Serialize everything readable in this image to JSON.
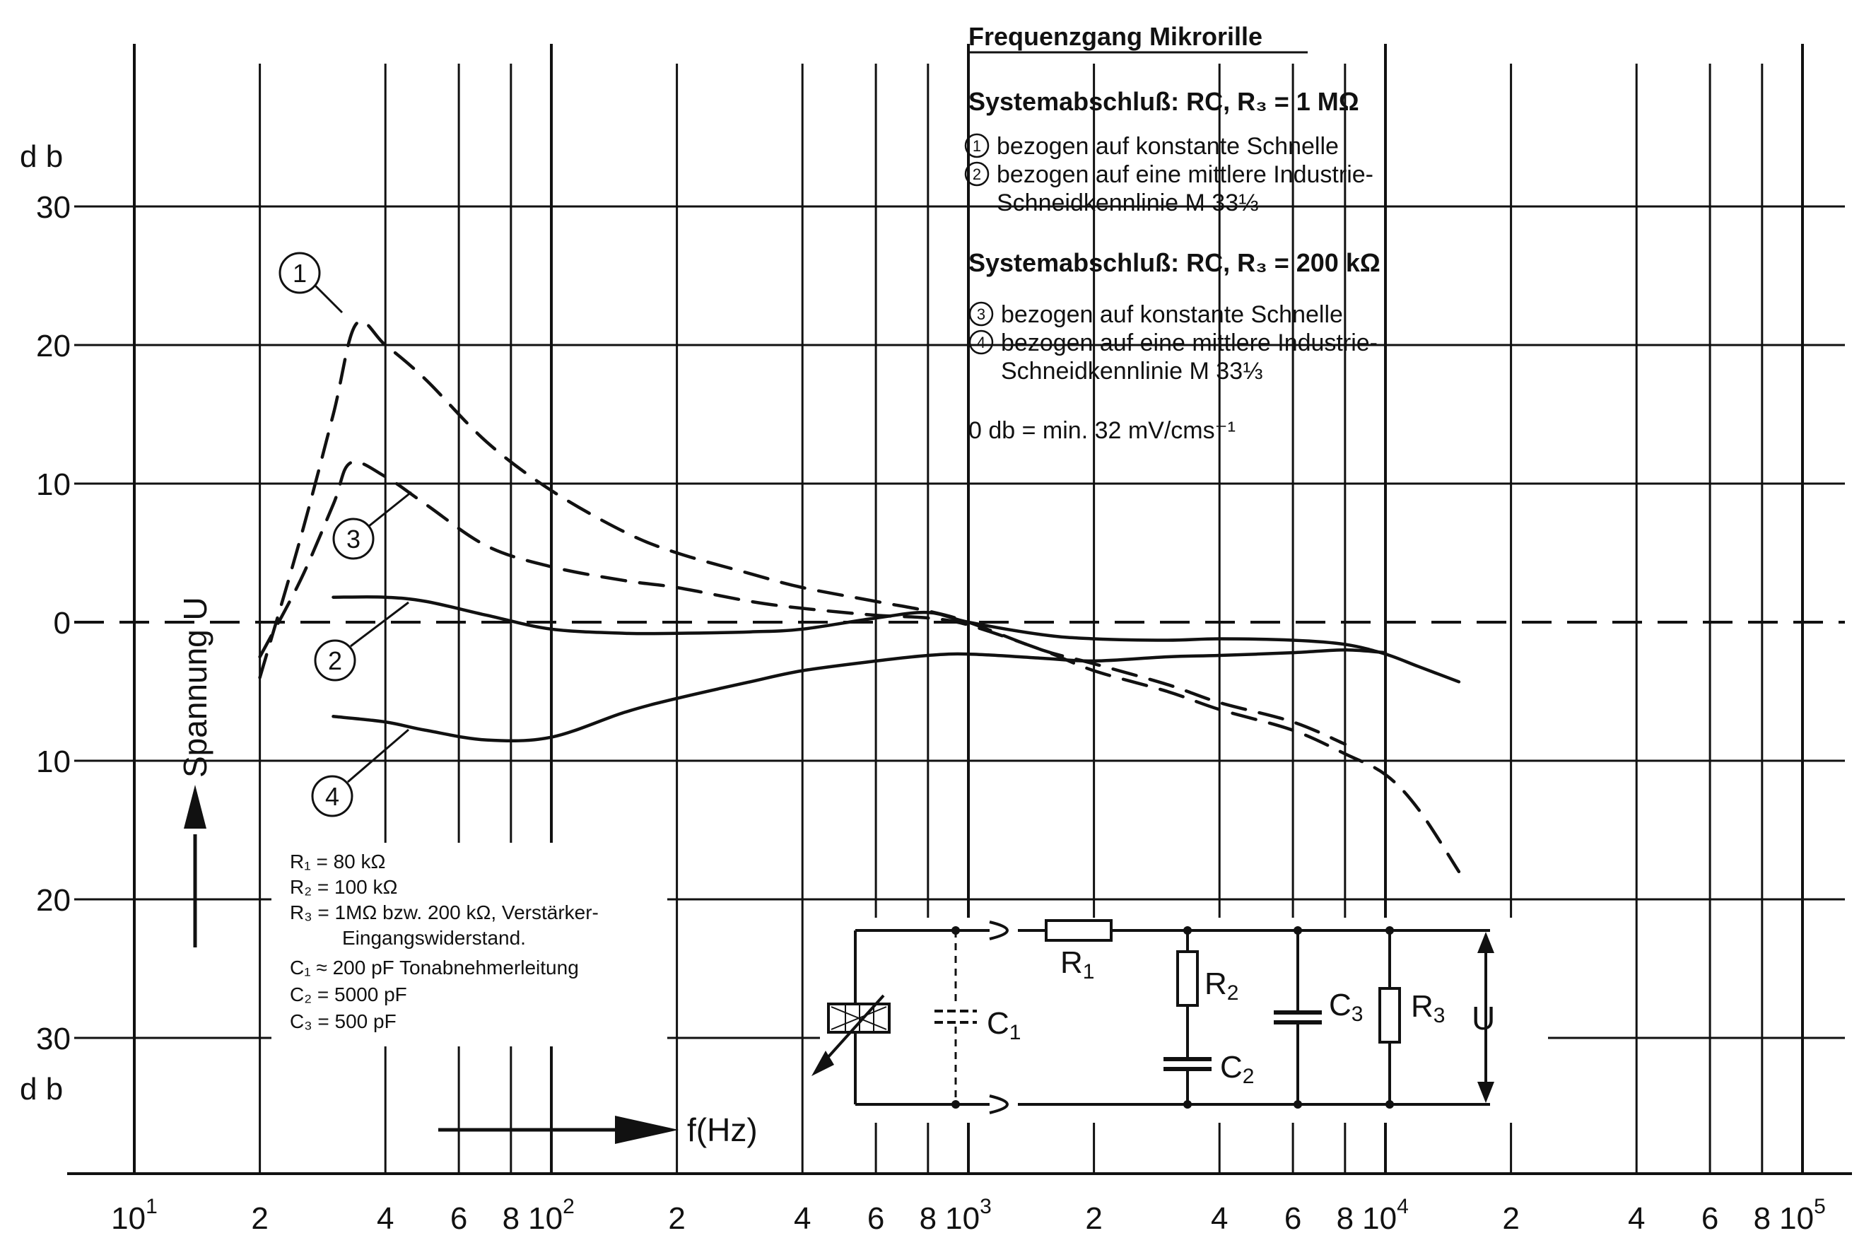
{
  "chart_data": {
    "type": "line",
    "title": "Frequenzgang Mikrorille",
    "xlabel": "f(Hz)",
    "ylabel": "Spannung U",
    "y_unit_top": "d b",
    "y_unit_bottom": "d b",
    "x_scale": "log",
    "xlim": [
      10,
      100000
    ],
    "ylim": [
      -40,
      40
    ],
    "y_ticks": [
      {
        "value": 30,
        "label": "30"
      },
      {
        "value": 20,
        "label": "20"
      },
      {
        "value": 10,
        "label": "10"
      },
      {
        "value": 0,
        "label": "0"
      },
      {
        "value": -10,
        "label": "10"
      },
      {
        "value": -20,
        "label": "20"
      },
      {
        "value": -30,
        "label": "30"
      }
    ],
    "x_ticks": [
      {
        "value": 10,
        "label": "10",
        "exp": "1"
      },
      {
        "value": 20,
        "label": "2"
      },
      {
        "value": 40,
        "label": "4"
      },
      {
        "value": 60,
        "label": "6"
      },
      {
        "value": 80,
        "label": "8"
      },
      {
        "value": 100,
        "label": "10",
        "exp": "2"
      },
      {
        "value": 200,
        "label": "2"
      },
      {
        "value": 400,
        "label": "4"
      },
      {
        "value": 600,
        "label": "6"
      },
      {
        "value": 800,
        "label": "8"
      },
      {
        "value": 1000,
        "label": "10",
        "exp": "3"
      },
      {
        "value": 2000,
        "label": "2"
      },
      {
        "value": 4000,
        "label": "4"
      },
      {
        "value": 6000,
        "label": "6"
      },
      {
        "value": 8000,
        "label": "8"
      },
      {
        "value": 10000,
        "label": "10",
        "exp": "4"
      },
      {
        "value": 20000,
        "label": "2"
      },
      {
        "value": 40000,
        "label": "4"
      },
      {
        "value": 60000,
        "label": "6"
      },
      {
        "value": 80000,
        "label": "8"
      },
      {
        "value": 100000,
        "label": "10",
        "exp": "5"
      }
    ],
    "grid": true,
    "zero_line": "dashed",
    "series": [
      {
        "name": "1",
        "style": "dashed",
        "points": [
          [
            20,
            -4
          ],
          [
            25,
            6
          ],
          [
            30,
            15
          ],
          [
            34,
            21.5
          ],
          [
            40,
            20
          ],
          [
            50,
            17.5
          ],
          [
            70,
            13
          ],
          [
            100,
            9.5
          ],
          [
            150,
            6.5
          ],
          [
            200,
            5
          ],
          [
            300,
            3.5
          ],
          [
            400,
            2.5
          ],
          [
            600,
            1.5
          ],
          [
            800,
            0.8
          ],
          [
            1000,
            0
          ],
          [
            1500,
            -2
          ],
          [
            2000,
            -3
          ],
          [
            3000,
            -4.5
          ],
          [
            4000,
            -5.8
          ],
          [
            6000,
            -7.2
          ],
          [
            8000,
            -8.8
          ]
        ]
      },
      {
        "name": "3",
        "style": "dashed",
        "points": [
          [
            20,
            -2.5
          ],
          [
            25,
            3
          ],
          [
            30,
            8.5
          ],
          [
            33,
            11.5
          ],
          [
            40,
            10.5
          ],
          [
            50,
            8.5
          ],
          [
            70,
            5.5
          ],
          [
            100,
            4
          ],
          [
            150,
            3
          ],
          [
            200,
            2.5
          ],
          [
            300,
            1.5
          ],
          [
            400,
            1
          ],
          [
            600,
            0.5
          ],
          [
            800,
            0.3
          ],
          [
            1000,
            -0.2
          ],
          [
            1500,
            -2
          ],
          [
            2000,
            -3.5
          ],
          [
            3000,
            -5
          ],
          [
            4000,
            -6.3
          ],
          [
            6000,
            -7.8
          ],
          [
            8000,
            -9.5
          ],
          [
            10000,
            -11
          ],
          [
            12000,
            -13.5
          ],
          [
            15000,
            -18
          ]
        ]
      },
      {
        "name": "2",
        "style": "solid",
        "points": [
          [
            30,
            1.8
          ],
          [
            40,
            1.8
          ],
          [
            50,
            1.5
          ],
          [
            70,
            0.5
          ],
          [
            100,
            -0.5
          ],
          [
            150,
            -0.8
          ],
          [
            200,
            -0.8
          ],
          [
            300,
            -0.7
          ],
          [
            400,
            -0.5
          ],
          [
            600,
            0.3
          ],
          [
            800,
            0.7
          ],
          [
            1000,
            0
          ],
          [
            1500,
            -0.9
          ],
          [
            2000,
            -1.2
          ],
          [
            3000,
            -1.3
          ],
          [
            4000,
            -1.2
          ],
          [
            6000,
            -1.3
          ],
          [
            8000,
            -1.6
          ],
          [
            10000,
            -2.3
          ],
          [
            12000,
            -3.2
          ],
          [
            15000,
            -4.3
          ]
        ]
      },
      {
        "name": "4",
        "style": "solid",
        "points": [
          [
            30,
            -6.8
          ],
          [
            40,
            -7.2
          ],
          [
            50,
            -7.8
          ],
          [
            70,
            -8.5
          ],
          [
            100,
            -8.3
          ],
          [
            150,
            -6.5
          ],
          [
            200,
            -5.5
          ],
          [
            300,
            -4.3
          ],
          [
            400,
            -3.5
          ],
          [
            600,
            -2.8
          ],
          [
            800,
            -2.4
          ],
          [
            1000,
            -2.3
          ],
          [
            1500,
            -2.6
          ],
          [
            2000,
            -2.8
          ],
          [
            3000,
            -2.5
          ],
          [
            4000,
            -2.4
          ],
          [
            6000,
            -2.2
          ],
          [
            8000,
            -2
          ],
          [
            10000,
            -2.2
          ]
        ]
      }
    ],
    "annotations": {
      "curve_labels": [
        "1",
        "2",
        "3",
        "4"
      ],
      "legend": {
        "heading1": "Systemabschluß: RC, R₃ = 1 MΩ",
        "item1": "bezogen auf konstante Schnelle",
        "item2_line1": "bezogen auf eine mittlere Industrie-",
        "item2_line2": "Schneidkennlinie M 33⅓",
        "heading2": "Systemabschluß: RC, R₃ = 200 kΩ",
        "item3": "bezogen auf konstante Schnelle",
        "item4_line1": "bezogen auf eine mittlere Industrie-",
        "item4_line2": "Schneidkennlinie M 33⅓",
        "reference": "0 db = min. 32 mV/cms⁻¹"
      },
      "components": [
        "R₁ = 80 kΩ",
        "R₂ = 100 kΩ",
        "R₃ = 1MΩ bzw. 200 kΩ, Verstärker-",
        "Eingangswiderstand.",
        "C₁ ≈ 200 pF Tonabnehmerleitung",
        "C₂ = 5000 pF",
        "C₃ = 500 pF"
      ],
      "circuit_labels": {
        "r1": "R",
        "r1_sub": "1",
        "r2": "R",
        "r2_sub": "2",
        "r3": "R",
        "r3_sub": "3",
        "c1": "C",
        "c1_sub": "1",
        "c2": "C",
        "c2_sub": "2",
        "c3": "C",
        "c3_sub": "3",
        "u": "U"
      }
    },
    "colors": {
      "ink": "#111111",
      "background": "#ffffff"
    }
  }
}
